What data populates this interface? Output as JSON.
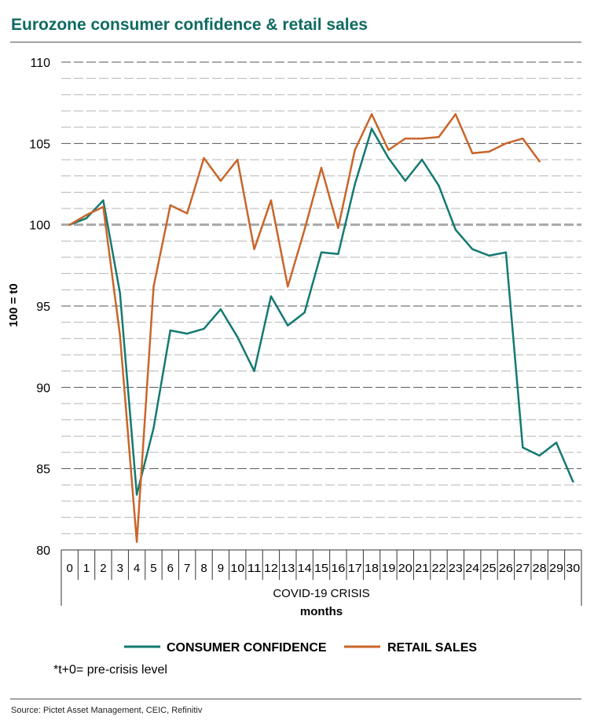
{
  "header": {
    "title": "Eurozone consumer confidence & retail sales"
  },
  "footnote": "*t+0= pre-crisis level",
  "source": "Source: Pictet Asset Management, CEIC, Refinitiv",
  "chart_data": {
    "type": "line",
    "title": "Eurozone consumer confidence & retail sales",
    "ylabel": "100 = t0",
    "xlabel": "months",
    "x_group_label": "COVID-19 CRISIS",
    "ylim": [
      80,
      110
    ],
    "yticks": [
      80,
      85,
      90,
      95,
      100,
      105,
      110
    ],
    "grid": true,
    "reference_line": 100,
    "legend": "bottom",
    "categories": [
      0,
      1,
      2,
      3,
      4,
      5,
      6,
      7,
      8,
      9,
      10,
      11,
      12,
      13,
      14,
      15,
      16,
      17,
      18,
      19,
      20,
      21,
      22,
      23,
      24,
      25,
      26,
      27,
      28,
      29,
      30
    ],
    "series": [
      {
        "name": "CONSUMER CONFIDENCE",
        "color": "#147a72",
        "x": [
          0,
          1,
          2,
          3,
          4,
          5,
          6,
          7,
          8,
          9,
          10,
          11,
          12,
          13,
          14,
          15,
          16,
          17,
          18,
          19,
          20,
          21,
          22,
          23,
          24,
          25,
          26,
          27,
          28,
          29,
          30
        ],
        "values": [
          100,
          100.4,
          101.5,
          95.8,
          83.4,
          87.5,
          93.5,
          93.3,
          93.6,
          94.8,
          93.1,
          91.0,
          95.6,
          93.8,
          94.6,
          98.3,
          98.2,
          102.5,
          105.9,
          104.1,
          102.7,
          104.0,
          102.4,
          99.7,
          98.5,
          98.1,
          98.3,
          86.3,
          85.8,
          86.6,
          84.2
        ]
      },
      {
        "name": "RETAIL SALES",
        "color": "#c9652a",
        "x": [
          0,
          1,
          2,
          3,
          4,
          5,
          6,
          7,
          8,
          9,
          10,
          11,
          12,
          13,
          14,
          15,
          16,
          17,
          18,
          19,
          20,
          21,
          22,
          23,
          24,
          25,
          26,
          27,
          28
        ],
        "values": [
          100,
          100.6,
          101.1,
          93.2,
          80.5,
          96.2,
          101.2,
          100.7,
          104.1,
          102.7,
          104.0,
          98.5,
          101.5,
          96.2,
          99.7,
          103.5,
          99.8,
          104.6,
          106.8,
          104.6,
          105.3,
          105.3,
          105.4,
          106.8,
          104.4,
          104.5,
          105.0,
          105.3,
          103.9
        ]
      }
    ]
  }
}
